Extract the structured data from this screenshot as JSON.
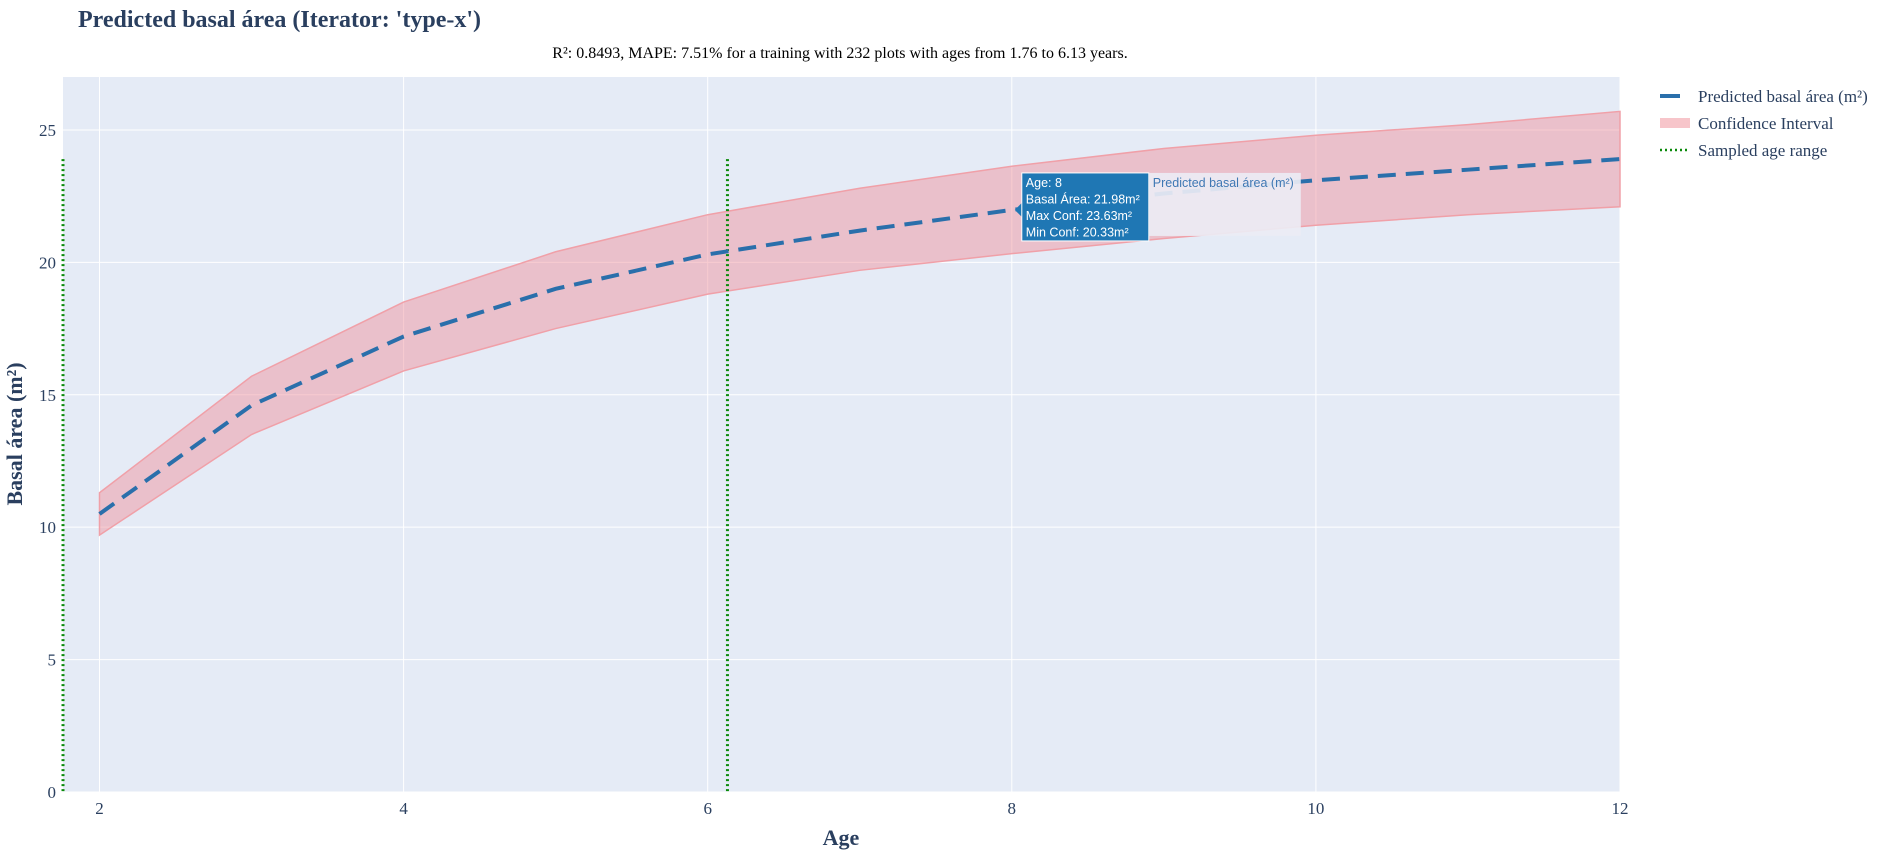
{
  "chart_data": {
    "type": "line",
    "title": "Predicted basal área (Iterator: 'type-x')",
    "subtitle": "R²: 0.8493, MAPE: 7.51% for a training with 232 plots with ages from 1.76 to 6.13 years.",
    "xlabel": "Age",
    "ylabel": "Basal área (m²)",
    "xlim": [
      1.76,
      12
    ],
    "ylim": [
      0,
      27
    ],
    "x_ticks": [
      "2",
      "4",
      "6",
      "8",
      "10",
      "12"
    ],
    "y_ticks": [
      "0",
      "5",
      "10",
      "15",
      "20",
      "25"
    ],
    "grid": true,
    "legend_position": "right",
    "series": [
      {
        "name": "Predicted basal área (m²)",
        "style": "dashed",
        "color": "#2a6fab",
        "x": [
          2,
          3,
          4,
          5,
          6,
          7,
          8,
          9,
          10,
          11,
          12
        ],
        "values": [
          10.5,
          14.6,
          17.2,
          19.0,
          20.3,
          21.2,
          21.98,
          22.6,
          23.1,
          23.5,
          23.9
        ]
      },
      {
        "name": "Confidence Interval",
        "style": "band",
        "color": "#f4a6ae",
        "x": [
          2,
          3,
          4,
          5,
          6,
          7,
          8,
          9,
          10,
          11,
          12
        ],
        "upper": [
          11.3,
          15.7,
          18.5,
          20.4,
          21.8,
          22.8,
          23.63,
          24.3,
          24.8,
          25.2,
          25.7
        ],
        "lower": [
          9.7,
          13.5,
          15.9,
          17.5,
          18.8,
          19.7,
          20.33,
          20.9,
          21.4,
          21.8,
          22.1
        ]
      },
      {
        "name": "Sampled age range",
        "style": "dotted",
        "color": "#0a8a0a",
        "x": [
          1.76,
          6.13
        ],
        "y_top": 23.9
      }
    ],
    "tooltip": {
      "x": 8,
      "lines": [
        "Age: 8",
        "Basal Área: 21.98m²",
        "Max Conf: 23.63m²",
        "Min Conf: 20.33m²"
      ],
      "series_label": "Predicted basal área (m²)"
    },
    "colors": {
      "plot_bg": "#e5ebf6",
      "grid": "#ffffff",
      "title": "#2a3f5f",
      "tooltip_bg": "#1f77b4"
    }
  }
}
